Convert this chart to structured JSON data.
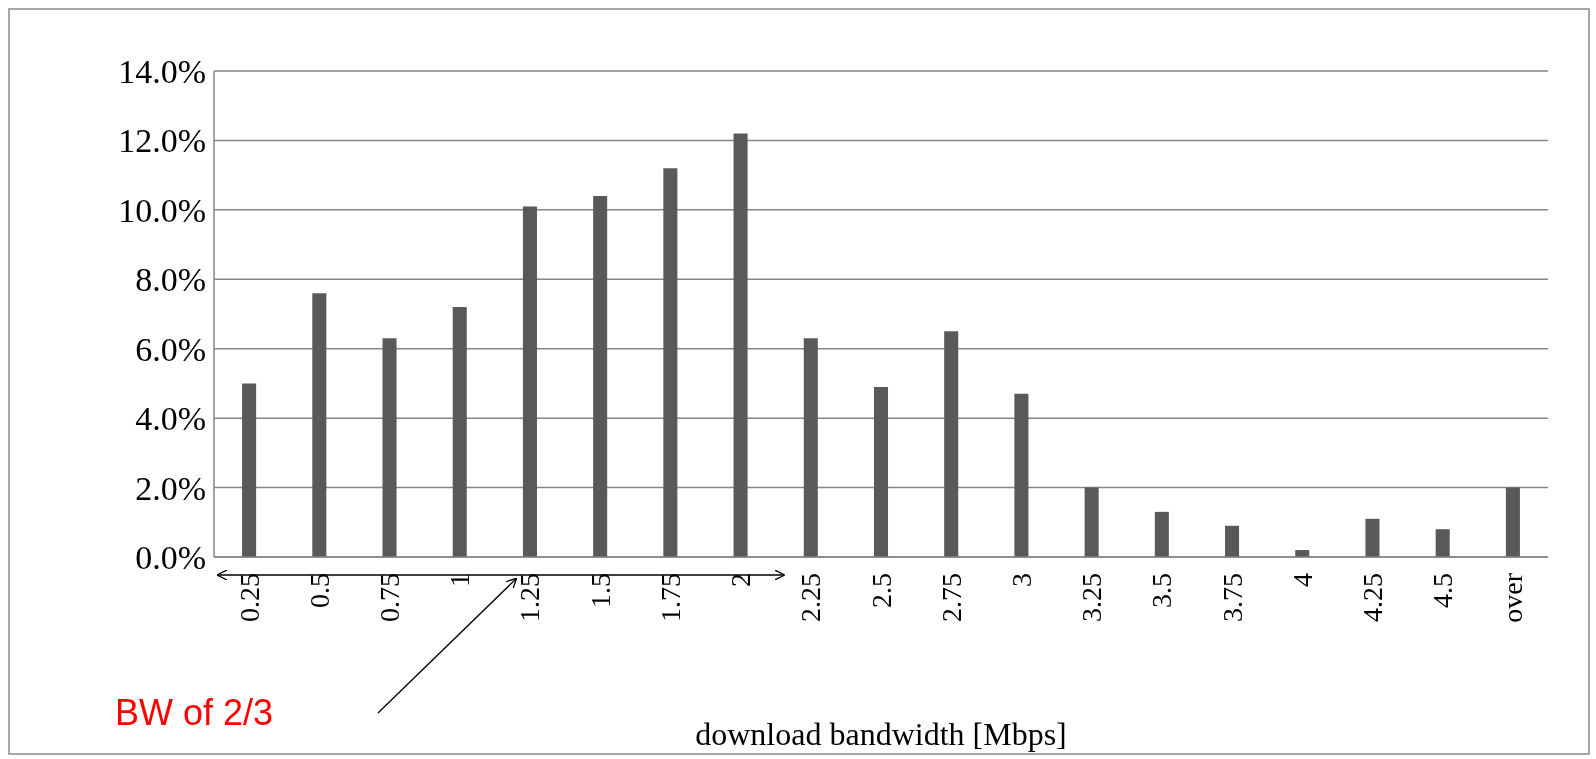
{
  "chart_data": {
    "type": "bar",
    "xlabel": "download bandwidth [Mbps]",
    "categories": [
      "0.25",
      "0.5",
      "0.75",
      "1",
      "1.25",
      "1.5",
      "1.75",
      "2",
      "2.25",
      "2.5",
      "2.75",
      "3",
      "3.25",
      "3.5",
      "3.75",
      "4",
      "4.25",
      "4.5",
      "over"
    ],
    "values": [
      5.0,
      7.6,
      6.3,
      7.2,
      10.1,
      10.4,
      11.2,
      12.2,
      6.3,
      4.9,
      6.5,
      4.7,
      2.0,
      1.3,
      0.9,
      0.2,
      1.1,
      0.8,
      2.0
    ],
    "color": "#595959",
    "ylim": [
      0,
      14
    ],
    "yticks": [
      {
        "value": 0,
        "label": "0.0%"
      },
      {
        "value": 2,
        "label": "2.0%"
      },
      {
        "value": 4,
        "label": "4.0%"
      },
      {
        "value": 6,
        "label": "6.0%"
      },
      {
        "value": 8,
        "label": "8.0%"
      },
      {
        "value": 10,
        "label": "10.0%"
      },
      {
        "value": 12,
        "label": "12.0%"
      },
      {
        "value": 14,
        "label": "14.0%"
      }
    ],
    "grid": "y",
    "annotations": [
      "BW of 2/3"
    ]
  }
}
